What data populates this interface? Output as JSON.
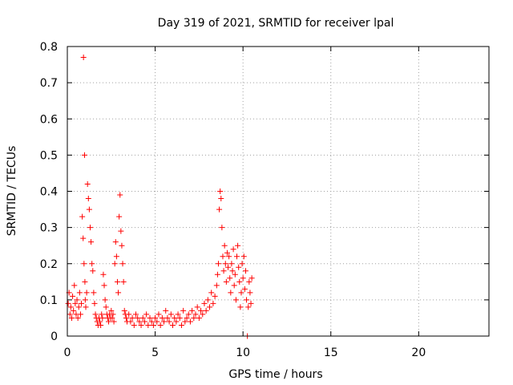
{
  "chart_data": {
    "type": "scatter",
    "title": "Day 319 of 2021, SRMTID for receiver lpal",
    "xlabel": "GPS time / hours",
    "ylabel": "SRMTID / TECUs",
    "xlim": [
      0,
      24
    ],
    "ylim": [
      0,
      0.8
    ],
    "xticks": [
      0,
      5,
      10,
      15,
      20
    ],
    "xtick_labels": [
      "0",
      "5",
      "10",
      "15",
      "20"
    ],
    "yticks": [
      0,
      0.1,
      0.2,
      0.3,
      0.4,
      0.5,
      0.6,
      0.7,
      0.8
    ],
    "ytick_labels": [
      "0",
      "0.1",
      "0.2",
      "0.3",
      "0.4",
      "0.5",
      "0.6",
      "0.7",
      "0.8"
    ],
    "grid": true,
    "marker": "+",
    "color": "#ff0000",
    "series": [
      {
        "name": "SRMTID",
        "x": [
          0.05,
          0.1,
          0.15,
          0.2,
          0.25,
          0.3,
          0.35,
          0.4,
          0.45,
          0.5,
          0.55,
          0.6,
          0.65,
          0.7,
          0.75,
          0.8,
          0.85,
          0.9,
          0.95,
          1.0,
          0.92,
          0.98,
          1.02,
          1.05,
          1.1,
          1.15,
          1.2,
          1.25,
          1.3,
          1.35,
          1.4,
          1.45,
          1.5,
          1.55,
          1.6,
          1.65,
          1.7,
          1.75,
          1.8,
          1.85,
          1.9,
          1.95,
          2.0,
          2.05,
          2.1,
          2.15,
          2.2,
          2.25,
          2.3,
          2.35,
          2.4,
          2.45,
          2.5,
          2.55,
          2.6,
          2.65,
          2.7,
          2.75,
          2.8,
          2.85,
          2.9,
          2.95,
          3.0,
          3.05,
          3.1,
          3.15,
          3.2,
          3.25,
          3.3,
          3.35,
          3.4,
          3.5,
          3.6,
          3.7,
          3.8,
          3.9,
          4.0,
          4.1,
          4.2,
          4.3,
          4.4,
          4.5,
          4.6,
          4.7,
          4.8,
          4.9,
          5.0,
          5.1,
          5.2,
          5.3,
          5.4,
          5.5,
          5.6,
          5.7,
          5.8,
          5.9,
          6.0,
          6.1,
          6.2,
          6.3,
          6.4,
          6.5,
          6.6,
          6.7,
          6.8,
          6.9,
          7.0,
          7.1,
          7.2,
          7.3,
          7.4,
          7.5,
          7.6,
          7.7,
          7.8,
          7.9,
          8.0,
          8.1,
          8.2,
          8.3,
          8.4,
          8.5,
          8.55,
          8.6,
          8.65,
          8.7,
          8.75,
          8.8,
          8.85,
          8.9,
          8.95,
          9.0,
          9.05,
          9.1,
          9.15,
          9.2,
          9.25,
          9.3,
          9.35,
          9.4,
          9.45,
          9.5,
          9.55,
          9.6,
          9.65,
          9.7,
          9.75,
          9.8,
          9.85,
          9.9,
          9.95,
          10.0,
          10.05,
          10.1,
          10.15,
          10.2,
          10.25,
          10.3,
          10.35,
          10.4,
          10.45,
          10.5
        ],
        "y": [
          0.09,
          0.12,
          0.06,
          0.08,
          0.05,
          0.11,
          0.07,
          0.14,
          0.09,
          0.06,
          0.1,
          0.05,
          0.08,
          0.12,
          0.06,
          0.09,
          0.33,
          0.27,
          0.2,
          0.15,
          0.77,
          0.5,
          0.1,
          0.08,
          0.12,
          0.42,
          0.38,
          0.35,
          0.3,
          0.26,
          0.2,
          0.18,
          0.12,
          0.09,
          0.06,
          0.05,
          0.04,
          0.03,
          0.05,
          0.04,
          0.03,
          0.06,
          0.05,
          0.17,
          0.14,
          0.1,
          0.08,
          0.06,
          0.05,
          0.04,
          0.06,
          0.05,
          0.07,
          0.05,
          0.06,
          0.04,
          0.2,
          0.26,
          0.22,
          0.15,
          0.12,
          0.33,
          0.39,
          0.29,
          0.25,
          0.2,
          0.15,
          0.07,
          0.06,
          0.05,
          0.04,
          0.06,
          0.04,
          0.05,
          0.03,
          0.06,
          0.05,
          0.04,
          0.03,
          0.05,
          0.04,
          0.06,
          0.03,
          0.05,
          0.04,
          0.03,
          0.05,
          0.04,
          0.06,
          0.03,
          0.05,
          0.04,
          0.07,
          0.05,
          0.04,
          0.06,
          0.03,
          0.05,
          0.04,
          0.06,
          0.05,
          0.03,
          0.07,
          0.04,
          0.05,
          0.06,
          0.04,
          0.07,
          0.05,
          0.06,
          0.08,
          0.05,
          0.07,
          0.06,
          0.09,
          0.07,
          0.1,
          0.08,
          0.12,
          0.09,
          0.11,
          0.14,
          0.17,
          0.2,
          0.35,
          0.4,
          0.38,
          0.3,
          0.22,
          0.18,
          0.25,
          0.2,
          0.15,
          0.23,
          0.19,
          0.22,
          0.16,
          0.12,
          0.2,
          0.18,
          0.24,
          0.14,
          0.17,
          0.1,
          0.22,
          0.25,
          0.19,
          0.15,
          0.08,
          0.12,
          0.2,
          0.16,
          0.22,
          0.13,
          0.18,
          0.1,
          0.0,
          0.08,
          0.15,
          0.12,
          0.09,
          0.16
        ]
      }
    ]
  }
}
